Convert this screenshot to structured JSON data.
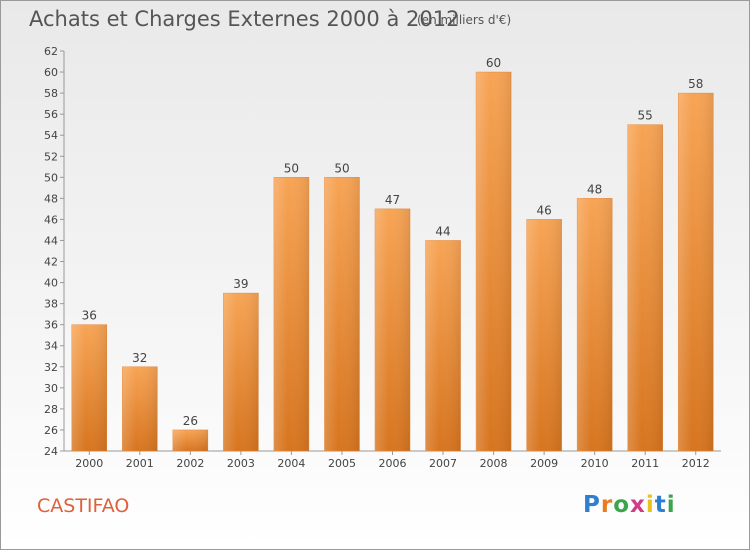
{
  "header": {
    "title": "Achats et Charges Externes 2000 à 2012",
    "unit": "(en milliers d'€)"
  },
  "footer": {
    "commune": "CASTIFAO",
    "logo": [
      "P",
      "r",
      "o",
      "x",
      "i",
      "t",
      "i"
    ],
    "logo_colors": [
      "#2f7fd0",
      "#e87c1e",
      "#3aa54a",
      "#d23a8a",
      "#e8c21e",
      "#2f7fd0",
      "#3aa54a"
    ]
  },
  "chart_data": {
    "type": "bar",
    "title": "Achats et Charges Externes 2000 à 2012",
    "subtitle": "(en milliers d'€)",
    "categories": [
      "2000",
      "2001",
      "2002",
      "2003",
      "2004",
      "2005",
      "2006",
      "2007",
      "2008",
      "2009",
      "2010",
      "2011",
      "2012"
    ],
    "values": [
      36,
      32,
      26,
      39,
      50,
      50,
      47,
      44,
      60,
      46,
      48,
      55,
      58
    ],
    "ylim": [
      24,
      62
    ],
    "yticks": [
      24,
      26,
      28,
      30,
      32,
      34,
      36,
      38,
      40,
      42,
      44,
      46,
      48,
      50,
      52,
      54,
      56,
      58,
      60,
      62
    ],
    "grid": false,
    "bar_color": "#f0953f"
  }
}
